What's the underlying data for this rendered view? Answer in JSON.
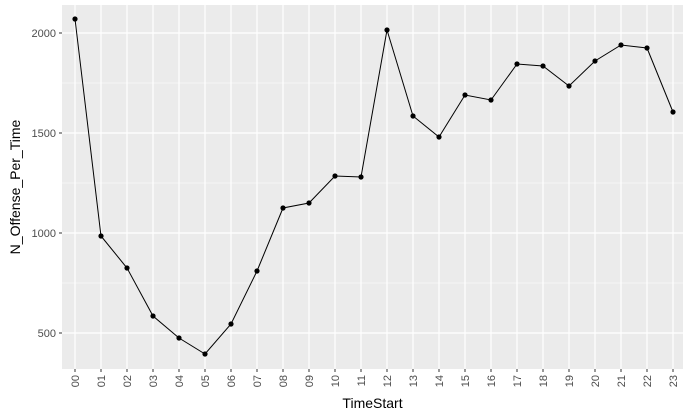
{
  "chart_data": {
    "type": "line",
    "title": "",
    "xlabel": "TimeStart",
    "ylabel": "N_Offense_Per_Time",
    "x": [
      "00",
      "01",
      "02",
      "03",
      "04",
      "05",
      "06",
      "07",
      "08",
      "09",
      "10",
      "11",
      "12",
      "13",
      "14",
      "15",
      "16",
      "17",
      "18",
      "19",
      "20",
      "21",
      "22",
      "23"
    ],
    "values": [
      2070,
      985,
      825,
      585,
      475,
      395,
      545,
      810,
      1125,
      1150,
      1285,
      1280,
      2015,
      1585,
      1480,
      1690,
      1665,
      1845,
      1835,
      1735,
      1860,
      1940,
      1925,
      1605
    ],
    "ylim": [
      320,
      2140
    ],
    "yticks": [
      500,
      1000,
      1500,
      2000
    ],
    "grid": true,
    "legend": "none",
    "colors": {
      "panel": "#ebebeb",
      "grid": "#ffffff",
      "line": "#000000",
      "points": "#000000"
    }
  }
}
